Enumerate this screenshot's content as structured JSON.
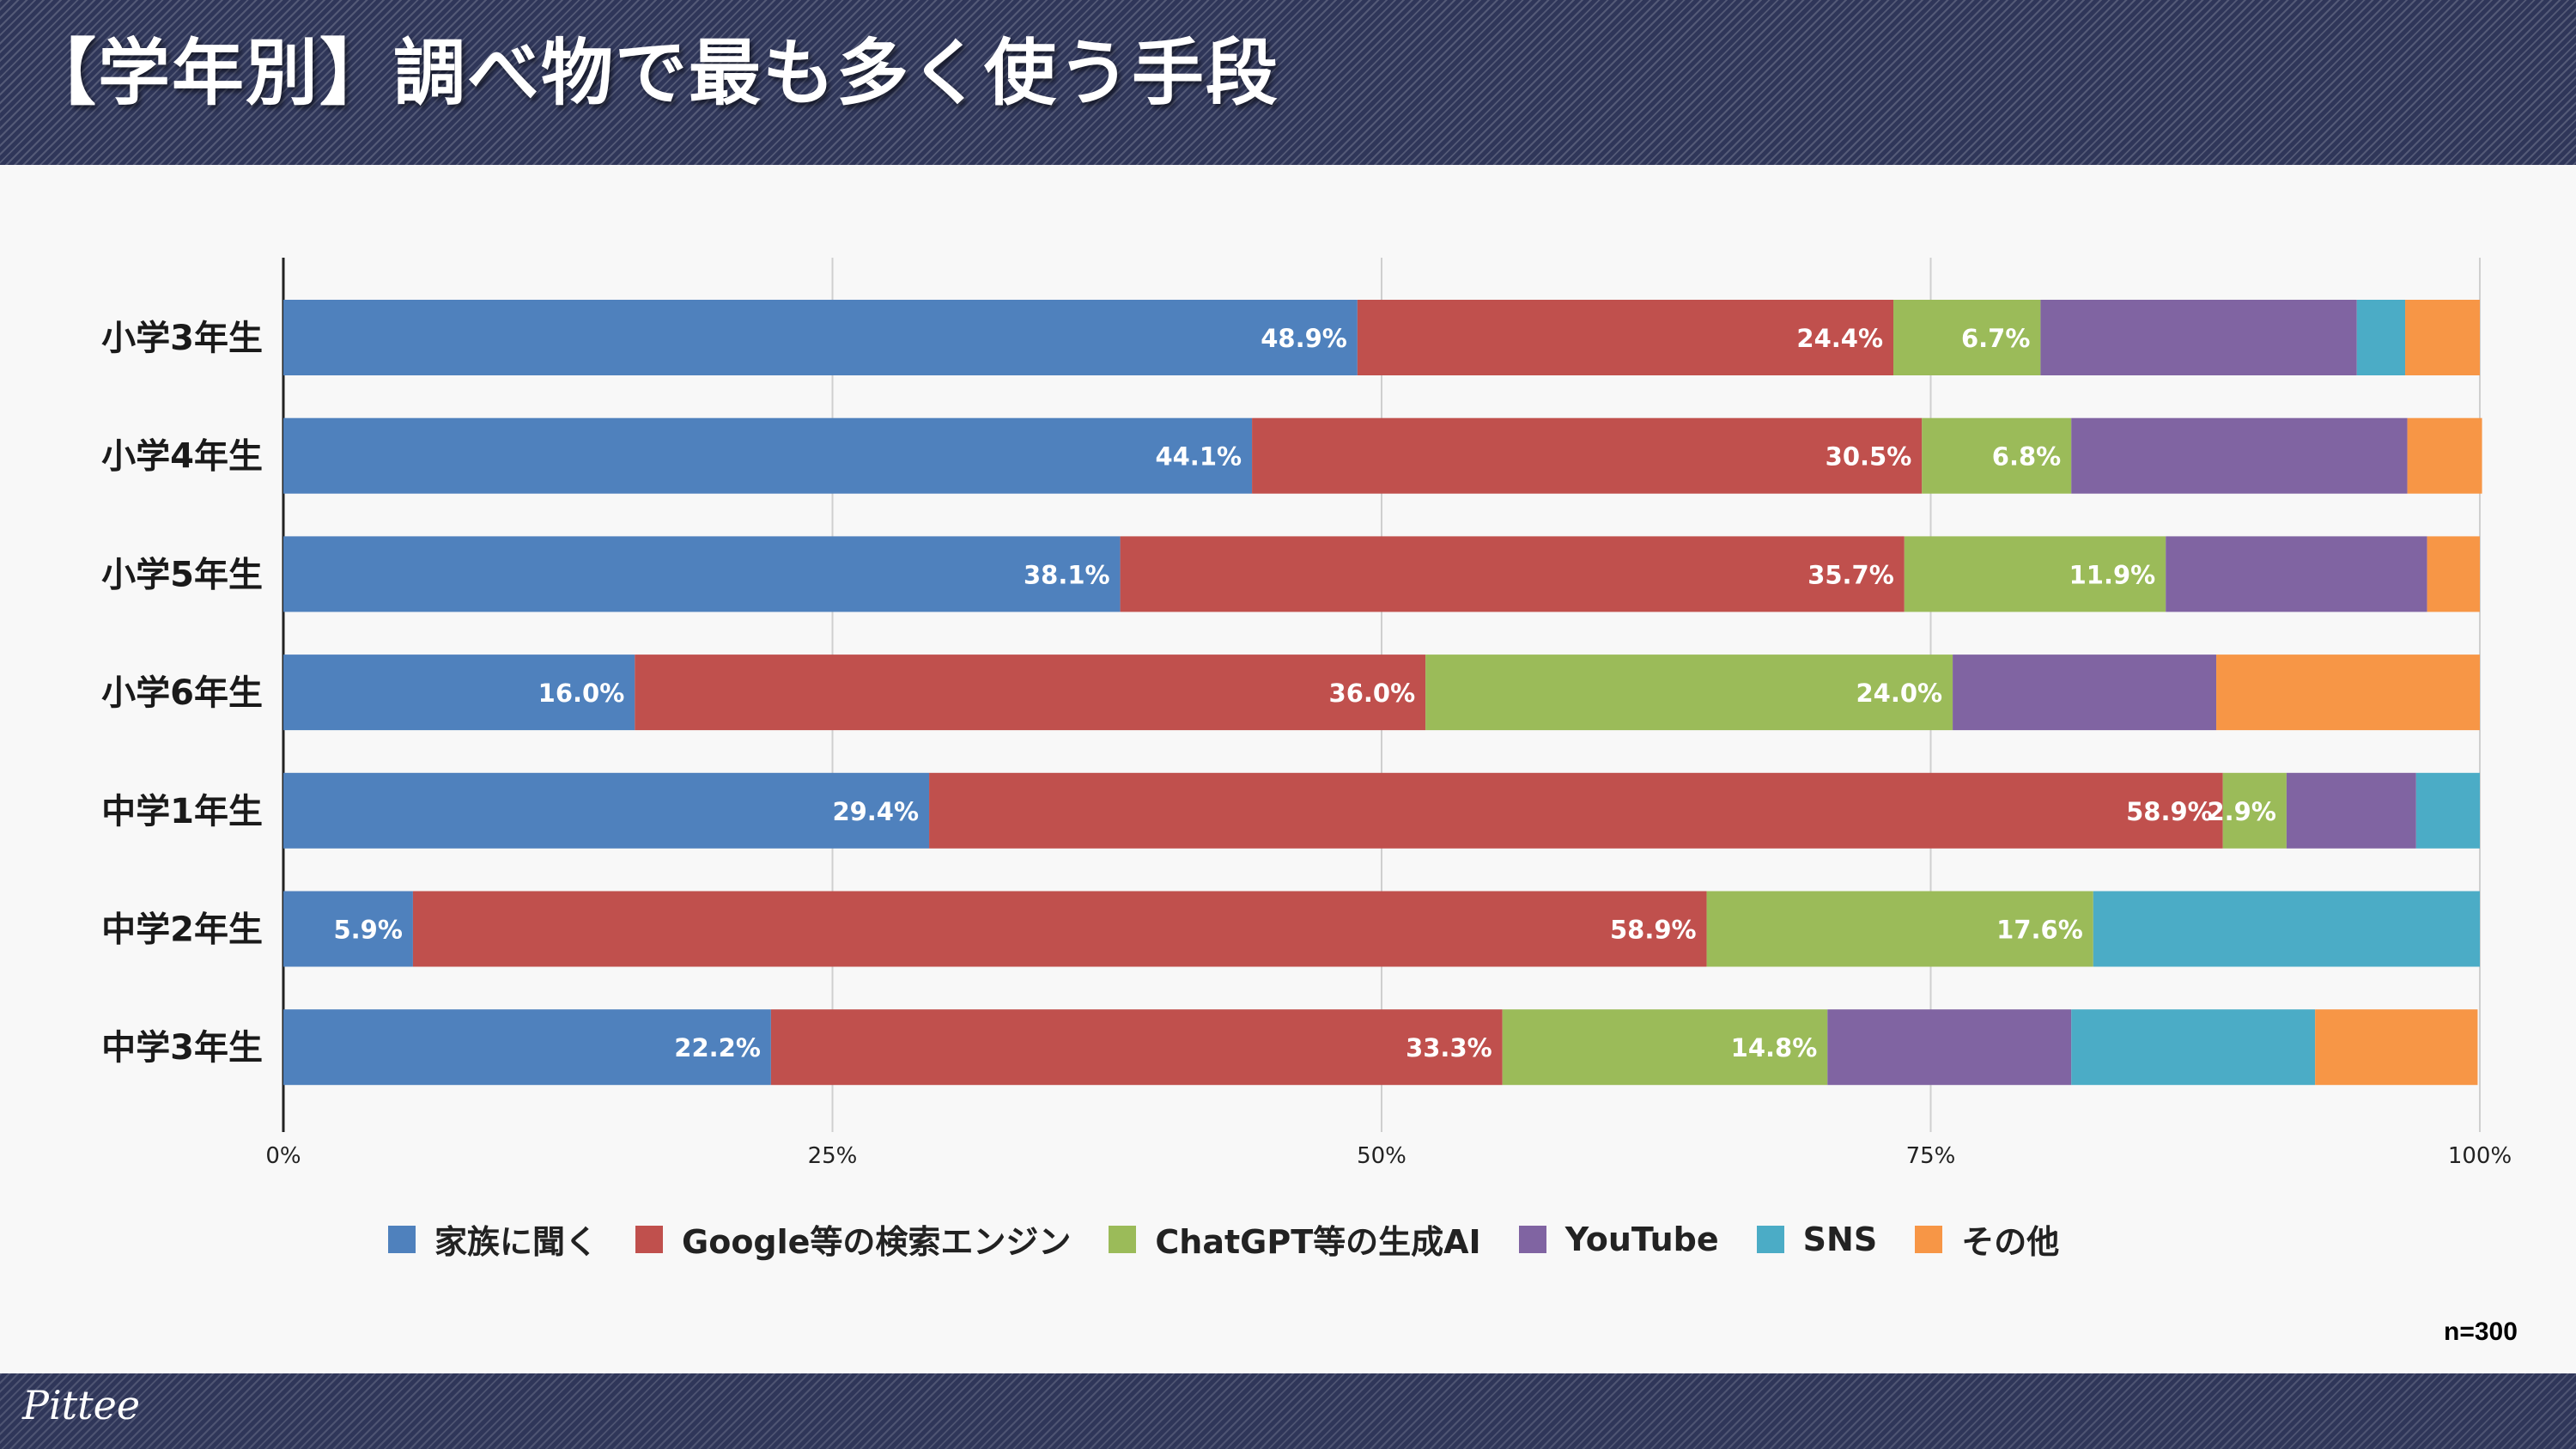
{
  "title": "【学年別】調べ物で最も多く使う手段",
  "logo_text": "Pittee",
  "sample_size": "n=300",
  "colors": {
    "header_bg": "#2f3659",
    "family": "#4f81bd",
    "google": "#c0504d",
    "chatgpt": "#9bbb59",
    "youtube": "#8064a2",
    "sns": "#4bacc6",
    "other": "#f79646"
  },
  "chart_data": {
    "type": "bar",
    "orientation": "horizontal",
    "stacked": true,
    "percent_stacked": true,
    "title": "【学年別】調べ物で最も多く使う手段",
    "categories": [
      "小学3年生",
      "小学4年生",
      "小学5年生",
      "小学6年生",
      "中学1年生",
      "中学2年生",
      "中学3年生"
    ],
    "x_ticks": [
      "0%",
      "25%",
      "50%",
      "75%",
      "100%"
    ],
    "xlim": [
      0,
      100
    ],
    "grid": true,
    "legend_position": "bottom",
    "series": [
      {
        "name": "家族に聞く",
        "color": "#4f81bd",
        "values": [
          48.9,
          44.1,
          38.1,
          16.0,
          29.4,
          5.9,
          22.2
        ],
        "labels": [
          "48.9%",
          "44.1%",
          "38.1%",
          "16.0%",
          "29.4%",
          "5.9%",
          "22.2%"
        ]
      },
      {
        "name": "Google等の検索エンジン",
        "color": "#c0504d",
        "values": [
          24.4,
          30.5,
          35.7,
          36.0,
          58.9,
          58.9,
          33.3
        ],
        "labels": [
          "24.4%",
          "30.5%",
          "35.7%",
          "36.0%",
          "58.9%",
          "58.9%",
          "33.3%"
        ]
      },
      {
        "name": "ChatGPT等の生成AI",
        "color": "#9bbb59",
        "values": [
          6.7,
          6.8,
          11.9,
          24.0,
          2.9,
          17.6,
          14.8
        ],
        "labels": [
          "6.7%",
          "6.8%",
          "11.9%",
          "24.0%",
          "2.9%",
          "17.6%",
          "14.8%"
        ]
      },
      {
        "name": "YouTube",
        "color": "#8064a2",
        "values": [
          14.4,
          15.3,
          11.9,
          12.0,
          5.9,
          0,
          11.1
        ],
        "labels": [
          "",
          "",
          "",
          "",
          "",
          "",
          ""
        ]
      },
      {
        "name": "SNS",
        "color": "#4bacc6",
        "values": [
          2.2,
          0,
          0,
          0,
          2.9,
          17.6,
          11.1
        ],
        "labels": [
          "",
          "",
          "",
          "",
          "",
          "",
          ""
        ]
      },
      {
        "name": "その他",
        "color": "#f79646",
        "values": [
          3.4,
          3.4,
          2.4,
          12.0,
          0,
          0,
          7.4
        ],
        "labels": [
          "",
          "",
          "",
          "",
          "",
          "",
          ""
        ]
      }
    ]
  }
}
